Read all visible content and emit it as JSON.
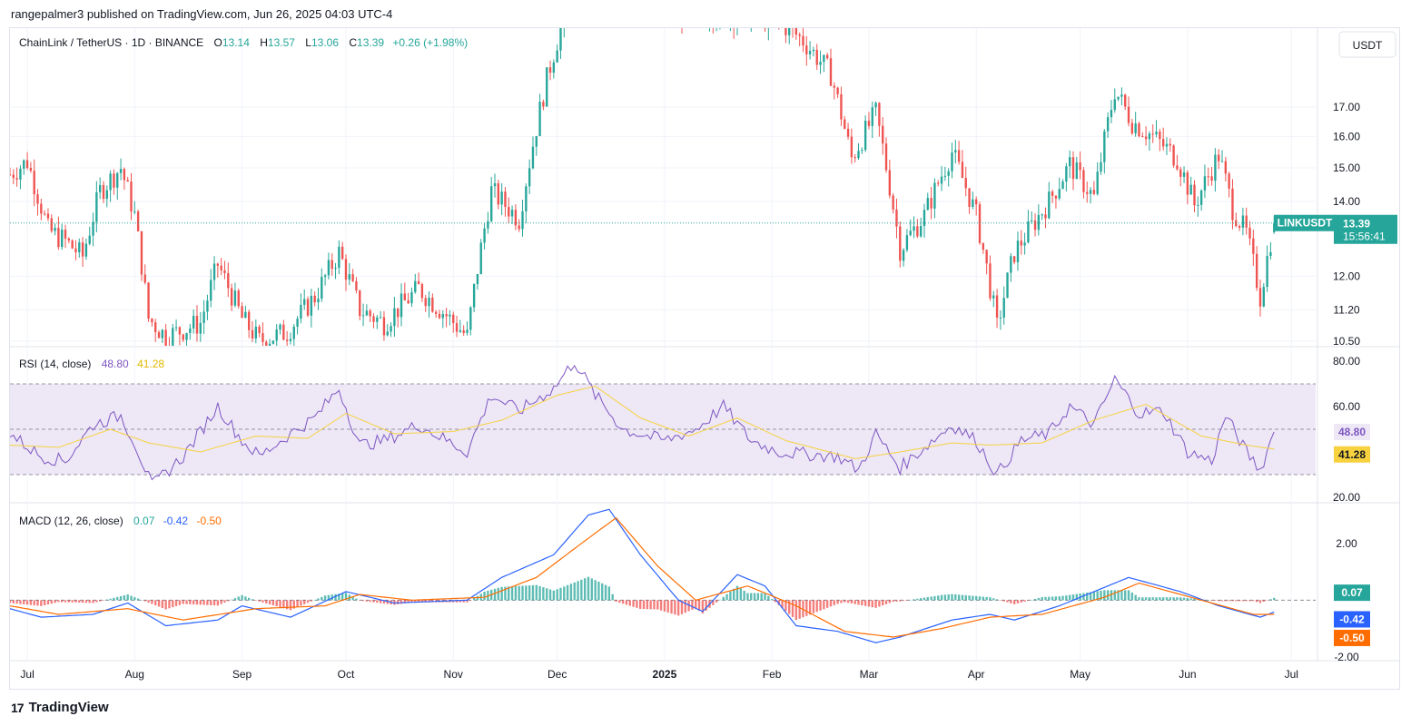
{
  "header": {
    "publisher": "rangepalmer3 published on TradingView.com, Jun 26, 2025 04:03 UTC-4"
  },
  "footer": {
    "brand": "TradingView",
    "logo": "tradingview-logo-icon"
  },
  "colors": {
    "up": "#26a69a",
    "down": "#ef5350",
    "rsi": "#7e57c2",
    "rsi_ma": "#f7d23e",
    "macd": "#2962ff",
    "signal": "#ff6d00",
    "band": "#ede7f6"
  },
  "chart_data": [
    {
      "type": "candlestick",
      "title_parts": {
        "symbol": "ChainLink / TetherUS · 1D · BINANCE",
        "o_label": "O",
        "o": "13.14",
        "h_label": "H",
        "h": "13.57",
        "l_label": "L",
        "l": "13.06",
        "c_label": "C",
        "c": "13.39",
        "change": "+0.26 (+1.98%)"
      },
      "currency": "USDT",
      "y_ticks": [
        "17.00",
        "16.00",
        "15.00",
        "14.00",
        "12.00",
        "11.20",
        "10.50"
      ],
      "ylim": [
        10.4,
        20.0
      ],
      "scale": "log",
      "last_price": 13.39,
      "last_label": {
        "symbol": "LINKUSDT",
        "price": "13.39",
        "countdown": "15:56:41"
      },
      "anchors": [
        [
          "2024-06-26",
          14.8
        ],
        [
          "2024-07-01",
          15.2
        ],
        [
          "2024-07-07",
          13.2
        ],
        [
          "2024-07-12",
          12.9
        ],
        [
          "2024-07-17",
          12.5
        ],
        [
          "2024-07-22",
          14.3
        ],
        [
          "2024-07-28",
          15.0
        ],
        [
          "2024-08-01",
          13.6
        ],
        [
          "2024-08-05",
          11.0
        ],
        [
          "2024-08-10",
          10.6
        ],
        [
          "2024-08-20",
          10.9
        ],
        [
          "2024-08-25",
          12.3
        ],
        [
          "2024-09-01",
          11.0
        ],
        [
          "2024-09-06",
          10.5
        ],
        [
          "2024-09-14",
          10.7
        ],
        [
          "2024-09-22",
          11.5
        ],
        [
          "2024-09-29",
          12.6
        ],
        [
          "2024-10-05",
          11.2
        ],
        [
          "2024-10-12",
          10.9
        ],
        [
          "2024-10-22",
          11.7
        ],
        [
          "2024-11-05",
          10.6
        ],
        [
          "2024-11-12",
          14.3
        ],
        [
          "2024-11-20",
          13.5
        ],
        [
          "2024-11-28",
          18.0
        ],
        [
          "2024-12-04",
          21.0
        ],
        [
          "2025-01-26",
          20.5
        ],
        [
          "2025-02-03",
          20.3
        ],
        [
          "2025-02-10",
          19.5
        ],
        [
          "2025-02-18",
          18.2
        ],
        [
          "2025-02-24",
          15.3
        ],
        [
          "2025-03-03",
          16.8
        ],
        [
          "2025-03-10",
          12.7
        ],
        [
          "2025-03-17",
          13.6
        ],
        [
          "2025-03-25",
          15.5
        ],
        [
          "2025-04-01",
          13.6
        ],
        [
          "2025-04-07",
          10.8
        ],
        [
          "2025-04-12",
          12.6
        ],
        [
          "2025-04-22",
          14.0
        ],
        [
          "2025-04-28",
          15.1
        ],
        [
          "2025-05-05",
          14.1
        ],
        [
          "2025-05-11",
          17.6
        ],
        [
          "2025-05-16",
          16.5
        ],
        [
          "2025-05-22",
          16.0
        ],
        [
          "2025-05-29",
          15.3
        ],
        [
          "2025-06-03",
          13.9
        ],
        [
          "2025-06-10",
          15.4
        ],
        [
          "2025-06-14",
          13.8
        ],
        [
          "2025-06-18",
          13.1
        ],
        [
          "2025-06-22",
          11.5
        ],
        [
          "2025-06-26",
          13.39
        ]
      ]
    },
    {
      "type": "line",
      "title": "RSI (14, close)",
      "values_label": {
        "rsi": "48.80",
        "ma": "41.28"
      },
      "y_ticks": [
        "80.00",
        "60.00",
        "20.00"
      ],
      "ylim": [
        18,
        86
      ],
      "band": [
        30,
        70
      ],
      "midline": 50,
      "series": [
        {
          "label": "48.80",
          "anchors": [
            [
              "2024-06-26",
              48
            ],
            [
              "2024-07-05",
              38
            ],
            [
              "2024-07-12",
              36
            ],
            [
              "2024-07-20",
              52
            ],
            [
              "2024-07-28",
              56
            ],
            [
              "2024-08-01",
              44
            ],
            [
              "2024-08-06",
              25
            ],
            [
              "2024-08-15",
              38
            ],
            [
              "2024-08-25",
              60
            ],
            [
              "2024-09-01",
              45
            ],
            [
              "2024-09-06",
              38
            ],
            [
              "2024-09-14",
              47
            ],
            [
              "2024-09-22",
              55
            ],
            [
              "2024-09-29",
              68
            ],
            [
              "2024-10-05",
              43
            ],
            [
              "2024-10-12",
              45
            ],
            [
              "2024-10-22",
              52
            ],
            [
              "2024-11-05",
              40
            ],
            [
              "2024-11-12",
              65
            ],
            [
              "2024-11-20",
              58
            ],
            [
              "2024-11-30",
              68
            ],
            [
              "2024-12-06",
              80
            ],
            [
              "2024-12-12",
              65
            ],
            [
              "2024-12-20",
              50
            ],
            [
              "2025-01-01",
              45
            ],
            [
              "2025-01-10",
              50
            ],
            [
              "2025-01-18",
              60
            ],
            [
              "2025-01-26",
              45
            ],
            [
              "2025-02-03",
              40
            ],
            [
              "2025-02-20",
              38
            ],
            [
              "2025-02-26",
              32
            ],
            [
              "2025-03-03",
              48
            ],
            [
              "2025-03-10",
              33
            ],
            [
              "2025-03-17",
              42
            ],
            [
              "2025-03-25",
              52
            ],
            [
              "2025-04-01",
              45
            ],
            [
              "2025-04-07",
              30
            ],
            [
              "2025-04-14",
              45
            ],
            [
              "2025-04-22",
              48
            ],
            [
              "2025-04-28",
              60
            ],
            [
              "2025-05-05",
              52
            ],
            [
              "2025-05-11",
              72
            ],
            [
              "2025-05-18",
              57
            ],
            [
              "2025-05-25",
              58
            ],
            [
              "2025-06-01",
              40
            ],
            [
              "2025-06-08",
              36
            ],
            [
              "2025-06-12",
              56
            ],
            [
              "2025-06-18",
              40
            ],
            [
              "2025-06-22",
              32
            ],
            [
              "2025-06-26",
              48.8
            ]
          ]
        },
        {
          "label": "41.28",
          "anchors": [
            [
              "2024-06-26",
              43
            ],
            [
              "2024-07-10",
              42
            ],
            [
              "2024-07-25",
              50
            ],
            [
              "2024-08-05",
              44
            ],
            [
              "2024-08-20",
              40
            ],
            [
              "2024-09-05",
              47
            ],
            [
              "2024-09-20",
              46
            ],
            [
              "2024-10-01",
              57
            ],
            [
              "2024-10-15",
              48
            ],
            [
              "2024-11-01",
              49
            ],
            [
              "2024-11-15",
              54
            ],
            [
              "2024-12-01",
              65
            ],
            [
              "2024-12-12",
              69
            ],
            [
              "2024-12-25",
              55
            ],
            [
              "2025-01-08",
              47
            ],
            [
              "2025-01-22",
              55
            ],
            [
              "2025-02-05",
              45
            ],
            [
              "2025-02-25",
              37
            ],
            [
              "2025-03-10",
              40
            ],
            [
              "2025-03-25",
              44
            ],
            [
              "2025-04-05",
              43
            ],
            [
              "2025-04-20",
              44
            ],
            [
              "2025-05-05",
              54
            ],
            [
              "2025-05-20",
              61
            ],
            [
              "2025-06-05",
              47
            ],
            [
              "2025-06-18",
              43
            ],
            [
              "2025-06-26",
              41.3
            ]
          ]
        }
      ]
    },
    {
      "type": "line",
      "title": "MACD (12, 26, close)",
      "values_label": {
        "hist": "0.07",
        "macd": "-0.42",
        "signal": "-0.50"
      },
      "y_ticks": [
        "2.00",
        "-2.00"
      ],
      "ylim": [
        -2.1,
        3.4
      ],
      "last_labels": [
        "0.07",
        "-0.42",
        "-0.50"
      ],
      "series": [
        {
          "label": "-0.42",
          "anchors": [
            [
              "2024-06-26",
              -0.3
            ],
            [
              "2024-07-05",
              -0.6
            ],
            [
              "2024-07-20",
              -0.5
            ],
            [
              "2024-07-30",
              -0.1
            ],
            [
              "2024-08-10",
              -0.9
            ],
            [
              "2024-08-25",
              -0.7
            ],
            [
              "2024-09-01",
              -0.2
            ],
            [
              "2024-09-15",
              -0.6
            ],
            [
              "2024-10-01",
              0.3
            ],
            [
              "2024-10-15",
              -0.1
            ],
            [
              "2024-11-05",
              0.0
            ],
            [
              "2024-11-15",
              0.8
            ],
            [
              "2024-11-30",
              1.6
            ],
            [
              "2024-12-10",
              3.0
            ],
            [
              "2024-12-16",
              3.2
            ],
            [
              "2024-12-25",
              1.6
            ],
            [
              "2025-01-05",
              0.0
            ],
            [
              "2025-01-12",
              -0.4
            ],
            [
              "2025-01-22",
              0.9
            ],
            [
              "2025-01-30",
              0.5
            ],
            [
              "2025-02-08",
              -0.9
            ],
            [
              "2025-02-20",
              -1.1
            ],
            [
              "2025-03-03",
              -1.5
            ],
            [
              "2025-03-10",
              -1.3
            ],
            [
              "2025-03-25",
              -0.7
            ],
            [
              "2025-04-05",
              -0.5
            ],
            [
              "2025-04-12",
              -0.7
            ],
            [
              "2025-04-25",
              -0.2
            ],
            [
              "2025-05-05",
              0.3
            ],
            [
              "2025-05-15",
              0.8
            ],
            [
              "2025-05-30",
              0.3
            ],
            [
              "2025-06-10",
              -0.2
            ],
            [
              "2025-06-22",
              -0.6
            ],
            [
              "2025-06-26",
              -0.42
            ]
          ]
        },
        {
          "label": "-0.50",
          "anchors": [
            [
              "2024-06-26",
              -0.2
            ],
            [
              "2024-07-10",
              -0.5
            ],
            [
              "2024-07-30",
              -0.3
            ],
            [
              "2024-08-15",
              -0.7
            ],
            [
              "2024-09-05",
              -0.3
            ],
            [
              "2024-09-25",
              -0.2
            ],
            [
              "2024-10-05",
              0.2
            ],
            [
              "2024-10-20",
              0.0
            ],
            [
              "2024-11-10",
              0.1
            ],
            [
              "2024-11-25",
              0.8
            ],
            [
              "2024-12-08",
              2.0
            ],
            [
              "2024-12-18",
              2.9
            ],
            [
              "2024-12-30",
              1.2
            ],
            [
              "2025-01-10",
              0.0
            ],
            [
              "2025-01-25",
              0.5
            ],
            [
              "2025-02-08",
              -0.2
            ],
            [
              "2025-02-22",
              -1.1
            ],
            [
              "2025-03-08",
              -1.3
            ],
            [
              "2025-03-22",
              -1.0
            ],
            [
              "2025-04-05",
              -0.6
            ],
            [
              "2025-04-20",
              -0.5
            ],
            [
              "2025-05-08",
              0.1
            ],
            [
              "2025-05-18",
              0.6
            ],
            [
              "2025-06-05",
              0.0
            ],
            [
              "2025-06-20",
              -0.5
            ],
            [
              "2025-06-26",
              -0.5
            ]
          ]
        }
      ]
    }
  ],
  "x_axis": {
    "ticks": [
      {
        "date": "2024-07-01",
        "label": "Jul"
      },
      {
        "date": "2024-08-01",
        "label": "Aug"
      },
      {
        "date": "2024-09-01",
        "label": "Sep"
      },
      {
        "date": "2024-10-01",
        "label": "Oct"
      },
      {
        "date": "2024-11-01",
        "label": "Nov"
      },
      {
        "date": "2024-12-01",
        "label": "Dec"
      },
      {
        "date": "2025-01-01",
        "label": "2025"
      },
      {
        "date": "2025-02-01",
        "label": "Feb"
      },
      {
        "date": "2025-03-01",
        "label": "Mar"
      },
      {
        "date": "2025-04-01",
        "label": "Apr"
      },
      {
        "date": "2025-05-01",
        "label": "May"
      },
      {
        "date": "2025-06-01",
        "label": "Jun"
      },
      {
        "date": "2025-07-01",
        "label": "Jul"
      }
    ],
    "range": [
      "2024-06-26",
      "2025-07-08"
    ]
  }
}
